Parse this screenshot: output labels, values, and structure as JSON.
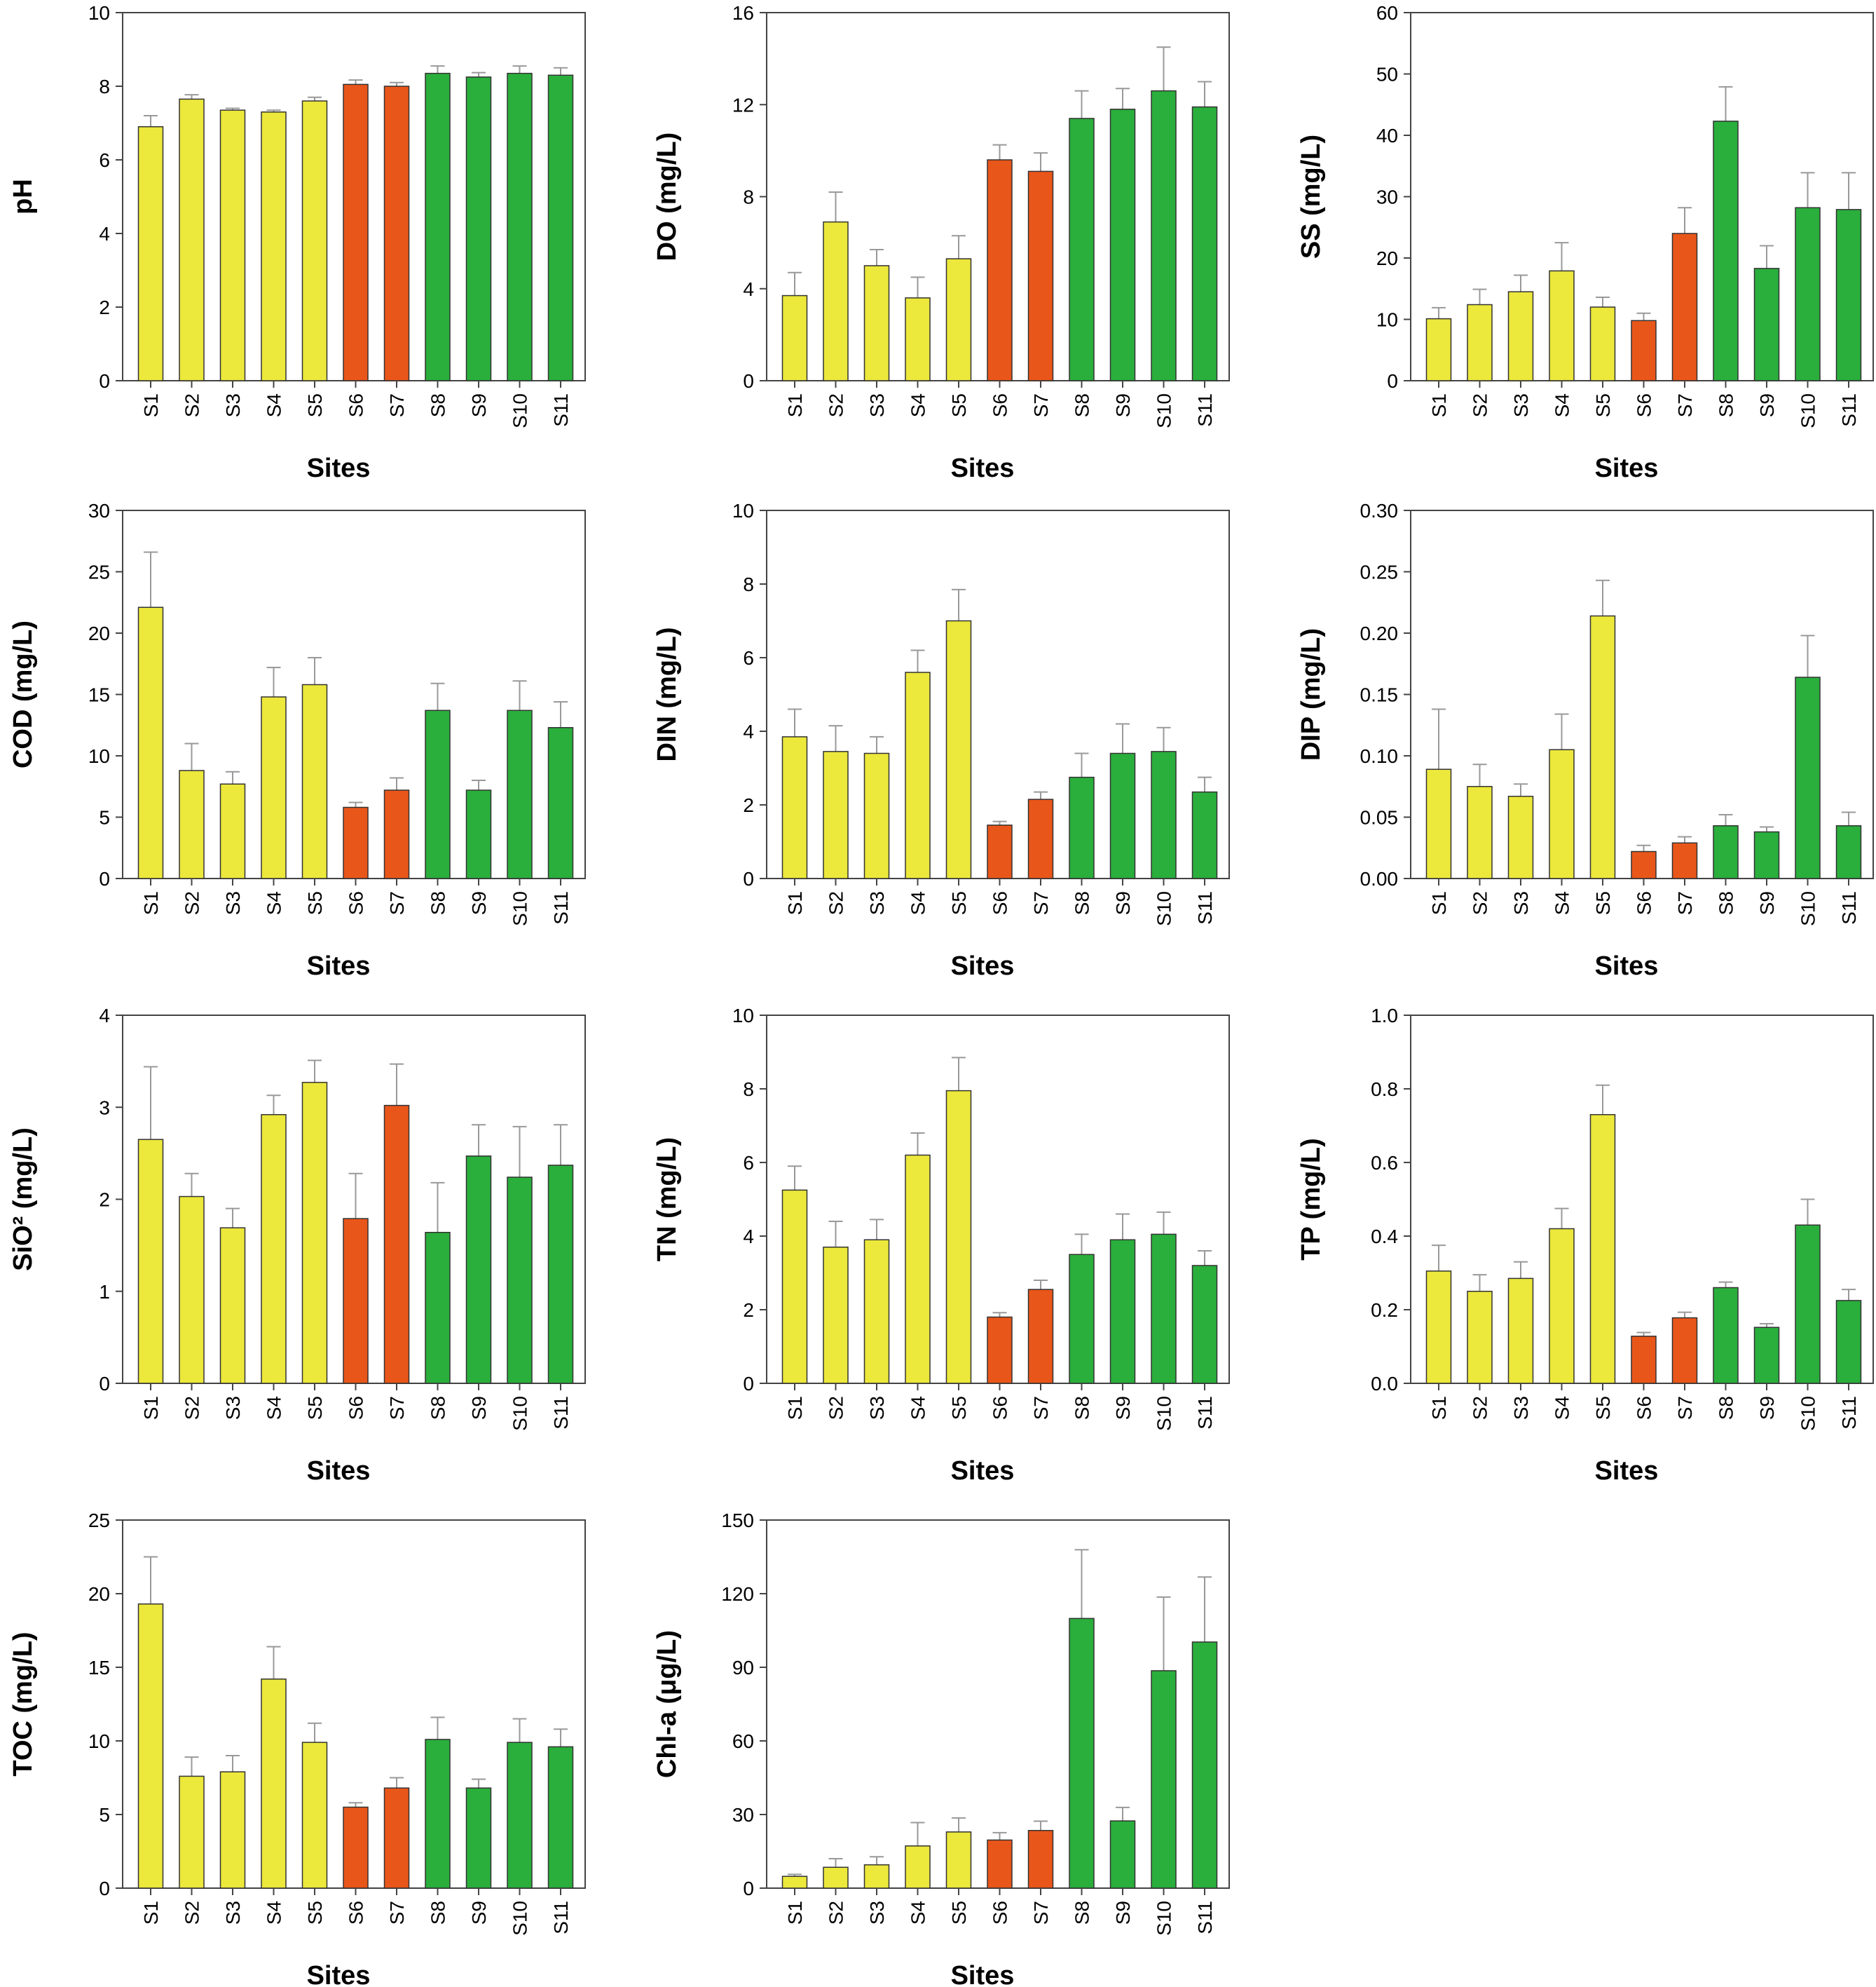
{
  "chart_data": {
    "type": "bar",
    "x_label": "Sites",
    "categories": [
      "S1",
      "S2",
      "S3",
      "S4",
      "S5",
      "S6",
      "S7",
      "S8",
      "S9",
      "S10",
      "S11"
    ],
    "group_colors": {
      "S1": "#ECE83C",
      "S2": "#ECE83C",
      "S3": "#ECE83C",
      "S4": "#ECE83C",
      "S5": "#ECE83C",
      "S6": "#E9561A",
      "S7": "#E9561A",
      "S8": "#2AAE3C",
      "S9": "#2AAE3C",
      "S10": "#2AAE3C",
      "S11": "#2AAE3C"
    },
    "panels": [
      {
        "id": "ph",
        "ylabel": "pH",
        "ylim": [
          0,
          10
        ],
        "ticks": [
          "0",
          "2",
          "4",
          "6",
          "8",
          "10"
        ],
        "values": [
          6.9,
          7.65,
          7.35,
          7.3,
          7.6,
          8.05,
          8.0,
          8.35,
          8.25,
          8.35,
          8.3
        ],
        "errors": [
          0.3,
          0.12,
          0.05,
          0.05,
          0.1,
          0.12,
          0.1,
          0.2,
          0.12,
          0.2,
          0.2
        ]
      },
      {
        "id": "do",
        "ylabel": "DO (mg/L)",
        "ylim": [
          0,
          16
        ],
        "ticks": [
          "0",
          "4",
          "8",
          "12",
          "16"
        ],
        "values": [
          3.7,
          6.9,
          5.0,
          3.6,
          5.3,
          9.6,
          9.1,
          11.4,
          11.8,
          12.6,
          11.9
        ],
        "errors": [
          1.0,
          1.3,
          0.7,
          0.9,
          1.0,
          0.65,
          0.8,
          1.2,
          0.9,
          1.9,
          1.1
        ]
      },
      {
        "id": "ss",
        "ylabel": "SS (mg/L)",
        "ylim": [
          0,
          60
        ],
        "ticks": [
          "0",
          "10",
          "20",
          "30",
          "40",
          "50",
          "60"
        ],
        "values": [
          10.1,
          12.4,
          14.5,
          17.9,
          12.0,
          9.8,
          24.0,
          42.3,
          18.3,
          28.2,
          27.9
        ],
        "errors": [
          1.8,
          2.5,
          2.7,
          4.6,
          1.6,
          1.2,
          4.2,
          5.6,
          3.7,
          5.7,
          6.0
        ]
      },
      {
        "id": "cod",
        "ylabel": "COD (mg/L)",
        "ylim": [
          0,
          30
        ],
        "ticks": [
          "0",
          "5",
          "10",
          "15",
          "20",
          "25",
          "30"
        ],
        "values": [
          22.1,
          8.8,
          7.7,
          14.8,
          15.8,
          5.8,
          7.2,
          13.7,
          7.2,
          13.7,
          12.3
        ],
        "errors": [
          4.5,
          2.2,
          1.0,
          2.4,
          2.2,
          0.4,
          1.0,
          2.2,
          0.8,
          2.4,
          2.1
        ]
      },
      {
        "id": "din",
        "ylabel": "DIN (mg/L)",
        "ylim": [
          0,
          10
        ],
        "ticks": [
          "0",
          "2",
          "4",
          "6",
          "8",
          "10"
        ],
        "values": [
          3.85,
          3.45,
          3.4,
          5.6,
          7.0,
          1.45,
          2.15,
          2.75,
          3.4,
          3.45,
          2.35
        ],
        "errors": [
          0.75,
          0.7,
          0.45,
          0.6,
          0.85,
          0.1,
          0.2,
          0.65,
          0.8,
          0.65,
          0.4
        ]
      },
      {
        "id": "dip",
        "ylabel": "DIP (mg/L)",
        "ylim": [
          0,
          0.3
        ],
        "ticks": [
          "0.00",
          "0.05",
          "0.10",
          "0.15",
          "0.20",
          "0.25",
          "0.30"
        ],
        "values": [
          0.089,
          0.075,
          0.067,
          0.105,
          0.214,
          0.022,
          0.029,
          0.043,
          0.038,
          0.164,
          0.043
        ],
        "errors": [
          0.049,
          0.018,
          0.01,
          0.029,
          0.029,
          0.005,
          0.005,
          0.009,
          0.004,
          0.034,
          0.011
        ]
      },
      {
        "id": "sio",
        "ylabel": "SiO² (mg/L)",
        "ylim": [
          0,
          4
        ],
        "ticks": [
          "0",
          "1",
          "2",
          "3",
          "4"
        ],
        "values": [
          2.65,
          2.03,
          1.69,
          2.92,
          3.27,
          1.79,
          3.02,
          1.64,
          2.47,
          2.24,
          2.37
        ],
        "errors": [
          0.79,
          0.25,
          0.21,
          0.21,
          0.24,
          0.49,
          0.45,
          0.54,
          0.34,
          0.55,
          0.44
        ]
      },
      {
        "id": "tn",
        "ylabel": "TN (mg/L)",
        "ylim": [
          0,
          10
        ],
        "ticks": [
          "0",
          "2",
          "4",
          "6",
          "8",
          "10"
        ],
        "values": [
          5.25,
          3.7,
          3.9,
          6.2,
          7.95,
          1.8,
          2.55,
          3.5,
          3.9,
          4.05,
          3.2
        ],
        "errors": [
          0.65,
          0.7,
          0.55,
          0.6,
          0.9,
          0.12,
          0.25,
          0.55,
          0.7,
          0.6,
          0.4
        ]
      },
      {
        "id": "tp",
        "ylabel": "TP (mg/L)",
        "ylim": [
          0,
          1.0
        ],
        "ticks": [
          "0.0",
          "0.2",
          "0.4",
          "0.6",
          "0.8",
          "1.0"
        ],
        "values": [
          0.305,
          0.25,
          0.285,
          0.42,
          0.73,
          0.128,
          0.178,
          0.26,
          0.152,
          0.43,
          0.225
        ],
        "errors": [
          0.07,
          0.045,
          0.045,
          0.055,
          0.08,
          0.01,
          0.015,
          0.015,
          0.01,
          0.07,
          0.03
        ]
      },
      {
        "id": "toc",
        "ylabel": "TOC (mg/L)",
        "ylim": [
          0,
          25
        ],
        "ticks": [
          "0",
          "5",
          "10",
          "15",
          "20",
          "25"
        ],
        "values": [
          19.3,
          7.6,
          7.9,
          14.2,
          9.9,
          5.5,
          6.8,
          10.1,
          6.8,
          9.9,
          9.6
        ],
        "errors": [
          3.2,
          1.3,
          1.1,
          2.2,
          1.3,
          0.3,
          0.7,
          1.5,
          0.6,
          1.6,
          1.2
        ]
      },
      {
        "id": "chla",
        "ylabel": "Chl-a (μg/L)",
        "ylim": [
          0,
          150
        ],
        "ticks": [
          "0",
          "30",
          "60",
          "90",
          "120",
          "150"
        ],
        "values": [
          4.8,
          8.5,
          9.5,
          17.2,
          22.9,
          19.6,
          23.5,
          109.9,
          27.4,
          88.6,
          100.3
        ],
        "errors": [
          0.8,
          3.5,
          3.3,
          9.5,
          5.7,
          3.0,
          3.8,
          28.0,
          5.5,
          30.0,
          26.5
        ]
      }
    ]
  }
}
